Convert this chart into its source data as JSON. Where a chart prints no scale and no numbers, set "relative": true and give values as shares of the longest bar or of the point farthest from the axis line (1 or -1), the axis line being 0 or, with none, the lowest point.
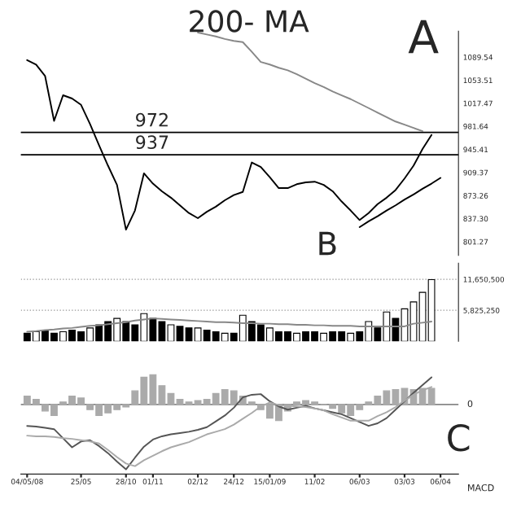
{
  "chart_data": [
    {
      "type": "line",
      "ylim": [
        780,
        1130
      ],
      "tick_labels": "y",
      "categories": [
        null,
        null,
        null,
        null,
        null,
        null,
        null,
        null,
        null,
        null,
        null,
        null,
        null,
        null,
        null,
        null,
        null,
        null,
        null,
        null,
        null,
        null,
        null,
        null,
        null,
        null,
        null,
        null,
        null,
        null,
        null,
        null,
        null,
        null,
        null,
        null,
        null,
        null,
        null,
        null,
        null,
        null,
        null,
        null,
        null,
        null,
        null
      ],
      "yticks": [
        {
          "value": 801.27,
          "label": "801.27"
        },
        {
          "value": 837.3,
          "label": "837.30"
        },
        {
          "value": 873.26,
          "label": "873.26"
        },
        {
          "value": 909.37,
          "label": "909.37"
        },
        {
          "value": 945.41,
          "label": "945.41"
        },
        {
          "value": 981.64,
          "label": "981.64"
        },
        {
          "value": 1017.47,
          "label": "1017.47"
        },
        {
          "value": 1053.51,
          "label": "1053.51"
        },
        {
          "value": 1089.54,
          "label": "1089.54"
        }
      ],
      "series": [
        {
          "color": "#000000",
          "values": [
            1085,
            1078,
            1060,
            990,
            1030,
            1025,
            1015,
            985,
            952,
            920,
            890,
            820,
            850,
            908,
            892,
            880,
            870,
            858,
            846,
            838,
            848,
            856,
            866,
            874,
            879,
            925,
            918,
            902,
            885,
            885,
            891,
            894,
            895,
            890,
            880,
            864,
            850,
            835,
            846,
            860,
            870,
            882,
            900,
            920,
            946,
            968,
            null
          ]
        },
        {
          "color": "#888888",
          "values": [
            null,
            null,
            null,
            null,
            null,
            null,
            null,
            null,
            null,
            null,
            null,
            null,
            null,
            null,
            null,
            null,
            null,
            null,
            null,
            1128,
            1125,
            1122,
            1118,
            1115,
            1113,
            1098,
            1082,
            1078,
            1073,
            1069,
            1063,
            1056,
            1049,
            1043,
            1036,
            1030,
            1024,
            1017,
            1010,
            1003,
            996,
            989,
            984,
            979,
            974,
            null,
            null
          ]
        },
        {
          "color": "#000000",
          "values": [
            null,
            null,
            null,
            null,
            null,
            null,
            null,
            null,
            null,
            null,
            null,
            null,
            null,
            null,
            null,
            null,
            null,
            null,
            null,
            null,
            null,
            null,
            null,
            null,
            null,
            null,
            null,
            null,
            null,
            null,
            null,
            null,
            null,
            null,
            null,
            null,
            null,
            824,
            833,
            841,
            850,
            858,
            867,
            875,
            884,
            892,
            901
          ]
        }
      ],
      "ref_lines": [
        {
          "axis": "y",
          "value": 972,
          "color": "#000000"
        },
        {
          "axis": "y",
          "value": 937,
          "color": "#000000"
        }
      ],
      "annotations": [
        {
          "text": "972",
          "y": 972
        },
        {
          "text": "937",
          "y": 937
        },
        "200- MA",
        "A"
      ]
    },
    {
      "type": "bar",
      "ylim": [
        0,
        14700000
      ],
      "tick_labels": "y",
      "grid": "y",
      "categories": [
        null,
        null,
        null,
        null,
        null,
        null,
        null,
        null,
        null,
        null,
        null,
        null,
        null,
        null,
        null,
        null,
        null,
        null,
        null,
        null,
        null,
        null,
        null,
        null,
        null,
        null,
        null,
        null,
        null,
        null,
        null,
        null,
        null,
        null,
        null,
        null,
        null,
        null,
        null,
        null,
        null,
        null,
        null,
        null,
        null,
        null,
        null
      ],
      "yticks": [
        {
          "value": 5825250,
          "label": "5,825,250"
        },
        {
          "value": 11650500,
          "label": "11,650,500"
        }
      ],
      "series": [
        {
          "values": [
            1500000,
            1800000,
            2100000,
            1500000,
            1800000,
            2100000,
            1800000,
            2500000,
            3100000,
            3700000,
            4300000,
            3700000,
            3100000,
            5200000,
            4300000,
            3700000,
            3100000,
            2800000,
            2500000,
            2500000,
            2100000,
            1800000,
            1500000,
            1500000,
            4900000,
            3700000,
            3100000,
            2500000,
            1800000,
            1800000,
            1500000,
            1800000,
            1800000,
            1500000,
            1800000,
            1800000,
            1500000,
            1800000,
            3700000,
            2500000,
            5500000,
            4300000,
            6100000,
            7400000,
            9200000,
            11600000,
            null
          ],
          "colors": [
            "#000000",
            "#ffffff",
            "#000000",
            "#000000",
            "#ffffff",
            "#000000",
            "#000000",
            "#ffffff",
            "#000000",
            "#000000",
            "#ffffff",
            "#000000",
            "#000000",
            "#ffffff",
            "#000000",
            "#000000",
            "#ffffff",
            "#000000",
            "#000000",
            "#ffffff",
            "#000000",
            "#000000",
            "#ffffff",
            "#000000",
            "#ffffff",
            "#000000",
            "#000000",
            "#ffffff",
            "#000000",
            "#000000",
            "#ffffff",
            "#000000",
            "#000000",
            "#ffffff",
            "#000000",
            "#000000",
            "#ffffff",
            "#000000",
            "#ffffff",
            "#000000",
            "#ffffff",
            "#000000",
            "#ffffff",
            "#ffffff",
            "#ffffff",
            "#ffffff",
            "#ffffff"
          ]
        },
        {
          "type": "line",
          "color": "#888888",
          "values": [
            1800000,
            1900000,
            2100000,
            2200000,
            2400000,
            2500000,
            2700000,
            2900000,
            3000000,
            3200000,
            3400000,
            3600000,
            3900000,
            4100000,
            4300000,
            4200000,
            4100000,
            4000000,
            3900000,
            3800000,
            3700000,
            3600000,
            3600000,
            3500000,
            3400000,
            3400000,
            3300000,
            3300000,
            3200000,
            3200000,
            3100000,
            3100000,
            3000000,
            3000000,
            2900000,
            2900000,
            2900000,
            2800000,
            2800000,
            2800000,
            2800000,
            2800000,
            2800000,
            3300000,
            3500000,
            3700000,
            null
          ]
        }
      ],
      "annotations": [
        "B"
      ]
    },
    {
      "type": "bar",
      "relative": true,
      "tick_labels": "x",
      "categories": [
        "04/05/08",
        null,
        null,
        null,
        null,
        null,
        "25/05",
        null,
        null,
        null,
        null,
        "28/10",
        null,
        null,
        "01/11",
        null,
        null,
        null,
        null,
        "02/12",
        null,
        null,
        null,
        "24/12",
        null,
        null,
        null,
        "15/01/09",
        null,
        null,
        null,
        null,
        "11/02",
        null,
        null,
        null,
        null,
        "06/03",
        null,
        null,
        null,
        null,
        "03/03",
        null,
        null,
        null,
        "06/04"
      ],
      "series": [
        {
          "color": "#aaaaaa",
          "values": [
            0.13,
            0.08,
            -0.1,
            -0.17,
            0.04,
            0.13,
            0.1,
            -0.08,
            -0.17,
            -0.13,
            -0.08,
            -0.04,
            0.21,
            0.42,
            0.46,
            0.29,
            0.17,
            0.08,
            0.04,
            0.06,
            0.08,
            0.17,
            0.23,
            0.21,
            0.13,
            0.04,
            -0.08,
            -0.21,
            -0.25,
            -0.1,
            0.04,
            0.06,
            0.04,
            0,
            -0.06,
            -0.13,
            -0.17,
            -0.08,
            0.04,
            0.13,
            0.21,
            0.23,
            0.25,
            0.23,
            0.25,
            0.25,
            null
          ]
        },
        {
          "type": "line",
          "color": "#555555",
          "values": [
            -0.33,
            -0.34,
            -0.36,
            -0.38,
            -0.52,
            -0.66,
            -0.57,
            -0.55,
            -0.64,
            -0.75,
            -0.88,
            -1,
            -0.82,
            -0.65,
            -0.54,
            -0.49,
            -0.46,
            -0.44,
            -0.42,
            -0.39,
            -0.35,
            -0.26,
            -0.17,
            -0.05,
            0.11,
            0.15,
            0.16,
            0.05,
            -0.03,
            -0.08,
            -0.05,
            -0.02,
            -0.06,
            -0.09,
            -0.12,
            -0.15,
            -0.21,
            -0.27,
            -0.33,
            -0.29,
            -0.21,
            -0.08,
            0.05,
            0.18,
            0.3,
            0.42,
            null
          ]
        },
        {
          "type": "line",
          "color": "#aaaaaa",
          "values": [
            -0.48,
            -0.49,
            -0.49,
            -0.5,
            -0.52,
            -0.53,
            -0.55,
            -0.57,
            -0.6,
            -0.7,
            -0.81,
            -0.91,
            -0.95,
            -0.86,
            -0.79,
            -0.72,
            -0.66,
            -0.62,
            -0.58,
            -0.52,
            -0.46,
            -0.42,
            -0.38,
            -0.31,
            -0.22,
            -0.13,
            -0.03,
            0.03,
            -0.01,
            -0.02,
            -0.03,
            -0.04,
            -0.06,
            -0.09,
            -0.15,
            -0.2,
            -0.25,
            -0.25,
            -0.25,
            -0.18,
            -0.12,
            -0.04,
            0.06,
            0.15,
            0.22,
            0.27,
            null
          ]
        }
      ],
      "annotations": [
        "0",
        "MACD",
        "C"
      ]
    }
  ]
}
